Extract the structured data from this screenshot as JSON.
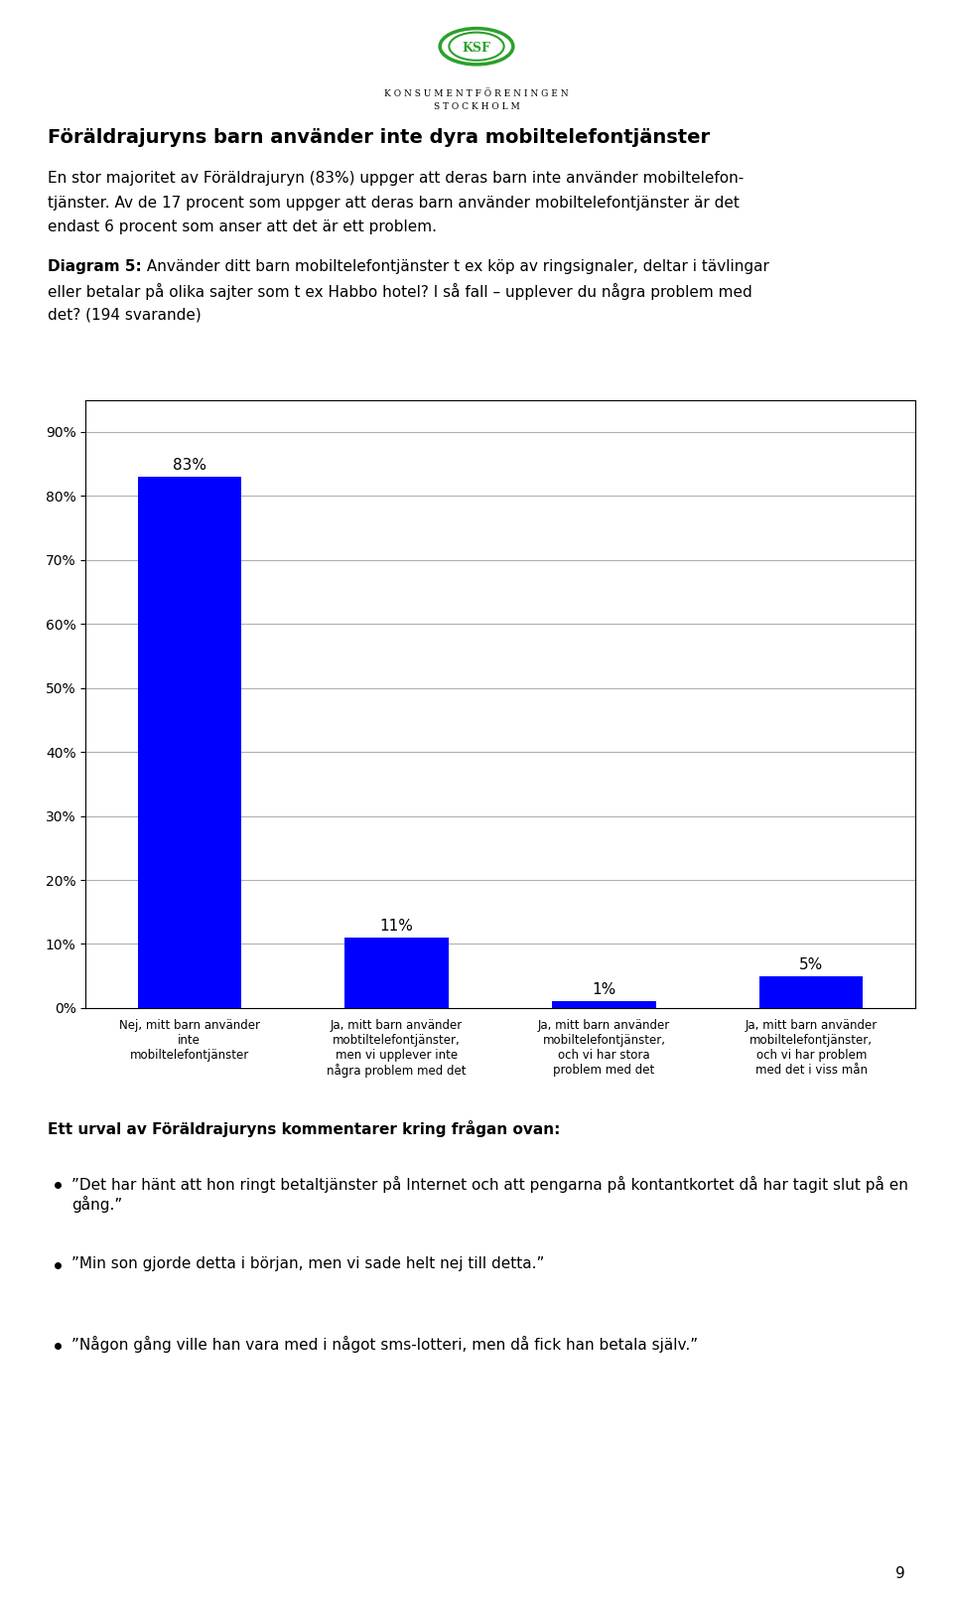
{
  "chart_data": {
    "type": "bar",
    "title": "Föräldrajuryns barn använder inte dyra mobiltelefontjänster",
    "subtitle": [
      "En stor majoritet av Föräldrajuryn (83%) uppger att deras barn inte använder mobiltelefon-",
      "tjänster. Av de 17 procent som uppger att deras barn använder mobiltelefontjänster är det",
      "endast 6 procent som anser att det är ett problem."
    ],
    "logo": [
      "KSF",
      "K O N S U M E N T F Ö R E N I N G E N",
      "S T O C K H O L M"
    ],
    "question": [
      "Diagram 5:",
      " Använder ditt barn mobiltelefontjänster t ex köp av ringsignaler, deltar i tävlingar",
      "eller betalar på olika sajter som t ex Habbo hotel? I så fall – upplever du några problem med",
      "det? (194 svarande)"
    ],
    "categories": [
      "Nej, mitt barn använder\ninte\nmobiltelefontjänster",
      "Ja, mitt barn använder\nmobtiltelefontjänster,\nmen vi upplever inte\nnågra problem med det",
      "Ja, mitt barn använder\nmobiltelefontjänster,\noch vi har stora\nproblem med det",
      "Ja, mitt barn använder\nmobiltelefontjänster,\noch vi har problem\nmed det i viss mån"
    ],
    "values": [
      83,
      11,
      1,
      5
    ],
    "value_labels": [
      "83%",
      "11%",
      "1%",
      "5%"
    ],
    "data_labels": true,
    "color": "#0000FF",
    "ylim": [
      0,
      95
    ],
    "yticks": [
      {
        "value": 0,
        "label": "0%"
      },
      {
        "value": 10,
        "label": "10%"
      },
      {
        "value": 20,
        "label": "20%"
      },
      {
        "value": 30,
        "label": "30%"
      },
      {
        "value": 40,
        "label": "40%"
      },
      {
        "value": 50,
        "label": "50%"
      },
      {
        "value": 60,
        "label": "60%"
      },
      {
        "value": 70,
        "label": "70%"
      },
      {
        "value": 80,
        "label": "80%"
      },
      {
        "value": 90,
        "label": "90%"
      }
    ],
    "grid": true,
    "footer": "Ett urval av Föräldrajuryns kommentarer kring frågan ovan:",
    "bullets": [
      "”Det har hänt att hon ringt betaltjänster på Internet och att pengarna på kontantkortet då har tagit slut på en gång.”",
      "”Min son gjorde detta i början, men vi sade helt nej till detta.”",
      "”Någon gång ville han vara med i något sms-lotteri, men då fick han betala själv.”"
    ],
    "page_number": "9"
  }
}
